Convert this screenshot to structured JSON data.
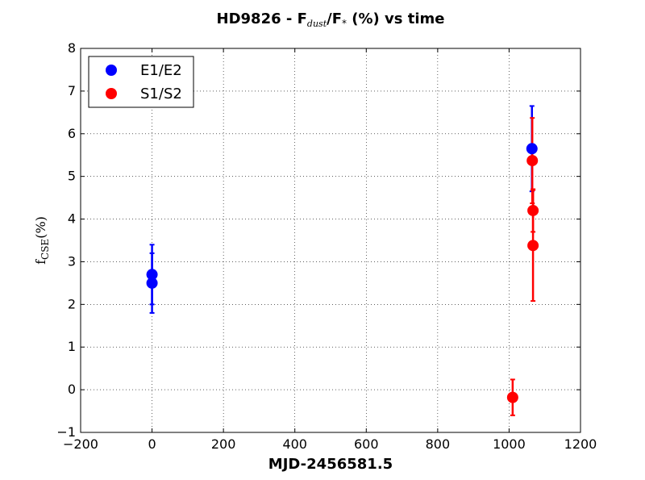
{
  "chart_data": {
    "type": "scatter",
    "title": {
      "pre": "HD9826 - F",
      "sub1": "dust",
      "mid": "/F",
      "sub2": "*",
      "post": " (%) vs time"
    },
    "xlabel": "MJD-2456581.5",
    "ylabel": {
      "main": "f",
      "sub": "CSE",
      "post": "(%)"
    },
    "xlim": [
      -200,
      1200
    ],
    "ylim": [
      -1,
      8
    ],
    "xticks": [
      -200,
      0,
      200,
      400,
      600,
      800,
      1000,
      1200
    ],
    "yticks": [
      -1,
      0,
      1,
      2,
      3,
      4,
      5,
      6,
      7,
      8
    ],
    "grid": true,
    "legend_position": "top-left",
    "series": [
      {
        "name": "E1/E2",
        "color": "#0000ff",
        "points": [
          {
            "x": 0,
            "y": 2.7,
            "yerr": 0.7
          },
          {
            "x": 0,
            "y": 2.5,
            "yerr": 0.7
          },
          {
            "x": 1064,
            "y": 5.65,
            "yerr": 1.0
          }
        ]
      },
      {
        "name": "S1/S2",
        "color": "#ff0000",
        "points": [
          {
            "x": 1010,
            "y": -0.18,
            "yerr": 0.42
          },
          {
            "x": 1065,
            "y": 5.37,
            "yerr": 1.0
          },
          {
            "x": 1067,
            "y": 4.2,
            "yerr": 0.5
          },
          {
            "x": 1067,
            "y": 3.38,
            "yerr": 1.3
          }
        ]
      }
    ]
  }
}
